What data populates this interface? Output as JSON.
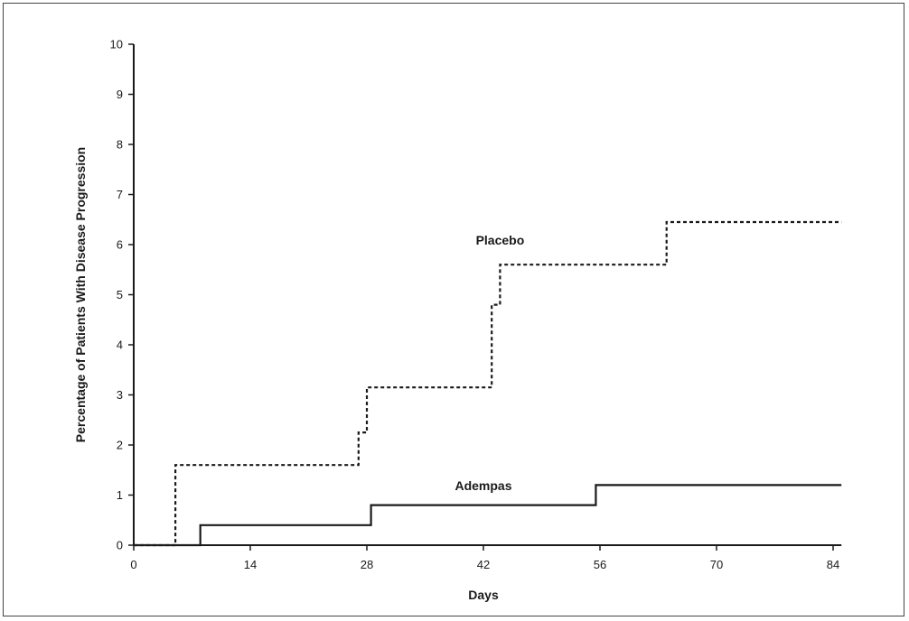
{
  "chart_data": {
    "type": "line",
    "subtype": "step",
    "title": "",
    "xlabel": "Days",
    "ylabel": "Percentage of Patients With Disease Progression",
    "xlim": [
      0,
      85
    ],
    "ylim": [
      0,
      10
    ],
    "x_ticks": [
      0,
      14,
      28,
      42,
      56,
      70,
      84
    ],
    "y_ticks": [
      0,
      1,
      2,
      3,
      4,
      5,
      6,
      7,
      8,
      9,
      10
    ],
    "grid": false,
    "series": [
      {
        "name": "Placebo",
        "style": "dashed",
        "color": "#1a1a1a",
        "label_at": [
          44,
          6
        ],
        "points": [
          [
            0,
            0
          ],
          [
            5,
            0
          ],
          [
            5,
            1.6
          ],
          [
            27,
            1.6
          ],
          [
            27,
            2.25
          ],
          [
            28,
            2.25
          ],
          [
            28,
            3.15
          ],
          [
            43,
            3.15
          ],
          [
            43,
            4.8
          ],
          [
            44,
            4.8
          ],
          [
            44,
            5.6
          ],
          [
            64,
            5.6
          ],
          [
            64,
            6.45
          ],
          [
            85,
            6.45
          ]
        ]
      },
      {
        "name": "Adempas",
        "style": "solid",
        "color": "#1a1a1a",
        "label_at": [
          42,
          1.1
        ],
        "points": [
          [
            0,
            0
          ],
          [
            8,
            0
          ],
          [
            8,
            0.4
          ],
          [
            28.5,
            0.4
          ],
          [
            28.5,
            0.8
          ],
          [
            55.5,
            0.8
          ],
          [
            55.5,
            1.2
          ],
          [
            85,
            1.2
          ]
        ]
      }
    ]
  }
}
